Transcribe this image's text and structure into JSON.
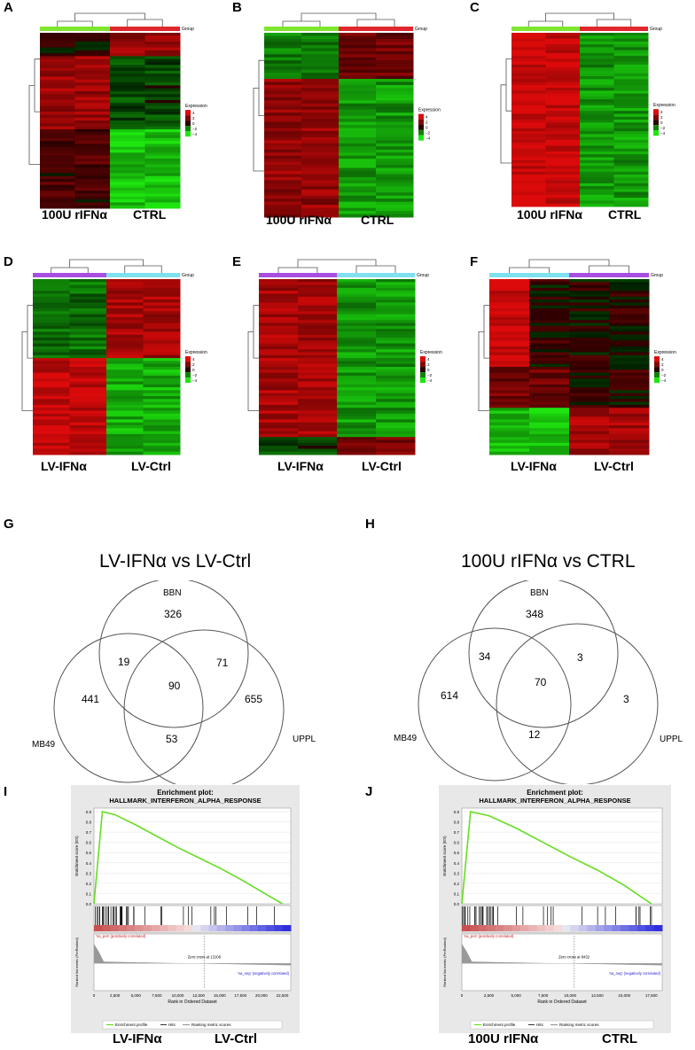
{
  "panels": {
    "A": {
      "letter": "A",
      "left": "100U  rIFNα",
      "right": "CTRL",
      "group": "Group"
    },
    "B": {
      "letter": "B",
      "left": "100U  rIFNα",
      "right": "CTRL",
      "group": "Group"
    },
    "C": {
      "letter": "C",
      "left": "100U  rIFNα",
      "right": "CTRL",
      "group": "Group"
    },
    "D": {
      "letter": "D",
      "left": "LV-IFNα",
      "right": "LV-Ctrl",
      "group": "Group"
    },
    "E": {
      "letter": "E",
      "left": "LV-IFNα",
      "right": "LV-Ctrl",
      "group": "Group"
    },
    "F": {
      "letter": "F",
      "left": "LV-IFNα",
      "right": "LV-Ctrl",
      "group": "Group"
    }
  },
  "legend": {
    "title": "Expression",
    "ticks": [
      "4",
      "2",
      "0",
      "−2",
      "−4"
    ]
  },
  "colors": {
    "top_green": "#7fe52e",
    "top_red": "#e0272e",
    "purple": "#a84ee0",
    "cyan": "#7fe0ee",
    "hm_red": "#c8201e",
    "hm_green": "#3fce1a"
  },
  "venn": {
    "G": {
      "letter": "G",
      "title": "LV-IFNα vs LV-Ctrl",
      "labels": {
        "bbn": "BBN",
        "mb49": "MB49",
        "uppl": "UPPL"
      },
      "counts": {
        "bbn_only": "326",
        "bbn_mb49": "19",
        "bbn_uppl": "71",
        "all": "90",
        "mb49_only": "441",
        "uppl_only": "655",
        "mb49_uppl": "53"
      }
    },
    "H": {
      "letter": "H",
      "title": "100U rIFNα vs CTRL",
      "labels": {
        "bbn": "BBN",
        "mb49": "MB49",
        "uppl": "UPPL"
      },
      "counts": {
        "bbn_only": "348",
        "bbn_mb49": "34",
        "bbn_uppl": "3",
        "all": "70",
        "mb49_only": "614",
        "uppl_only": "3",
        "mb49_uppl": "12"
      }
    }
  },
  "gsea": {
    "I": {
      "letter": "I",
      "title1": "Enrichment plot:",
      "title2": "HALLMARK_INTERFERON_ALPHA_RESPONSE",
      "ylab1": "Enrichment score (ES)",
      "ylab2": "Ranked list metric (PreRanked)",
      "xlab": "Rank in Ordered Dataset",
      "pos": "'na_pos' (positively correlated)",
      "neg": "'na_neg' (negatively correlated)",
      "zero": "Zero cross at 13108",
      "xticks": [
        "0",
        "2,500",
        "5,000",
        "7,500",
        "10,000",
        "12,500",
        "15,000",
        "17,500",
        "20,000",
        "22,500"
      ],
      "legend": [
        "Enrichment profile",
        "Hits",
        "Ranking metric scores"
      ],
      "cap_left": "LV-IFNα",
      "cap_right": "LV-Ctrl"
    },
    "J": {
      "letter": "J",
      "title1": "Enrichment plot:",
      "title2": "HALLMARK_INTERFERON_ALPHA_RESPONSE",
      "ylab1": "Enrichment score (ES)",
      "ylab2": "Ranked list metric (PreRanked)",
      "xlab": "Rank in Ordered Dataset",
      "pos": "'na_pos' (positively correlated)",
      "neg": "'na_neg' (negatively correlated)",
      "zero": "Zero cross at 8432",
      "xticks": [
        "0",
        "2,500",
        "5,000",
        "7,500",
        "10,000",
        "12,500",
        "15,000",
        "17,500"
      ],
      "legend": [
        "Enrichment profile",
        "Hits",
        "Ranking metric scores"
      ],
      "cap_left": "100U  rIFNα",
      "cap_right": "CTRL"
    }
  },
  "chart_data": [
    {
      "type": "heatmap",
      "panel": "A",
      "columns": 4,
      "rows": 60,
      "ylim": [
        -4,
        4
      ]
    },
    {
      "type": "heatmap",
      "panel": "B",
      "columns": 4,
      "rows": 60,
      "ylim": [
        -4,
        4
      ]
    },
    {
      "type": "heatmap",
      "panel": "C",
      "columns": 4,
      "rows": 60,
      "ylim": [
        -4,
        4
      ]
    },
    {
      "type": "heatmap",
      "panel": "D",
      "columns": 4,
      "rows": 60,
      "ylim": [
        -4,
        4
      ]
    },
    {
      "type": "heatmap",
      "panel": "E",
      "columns": 4,
      "rows": 60,
      "ylim": [
        -4,
        4
      ]
    },
    {
      "type": "heatmap",
      "panel": "F",
      "columns": 4,
      "rows": 60,
      "ylim": [
        -4,
        4
      ]
    },
    {
      "type": "line",
      "panel": "I",
      "x": [
        0,
        1000,
        2500,
        5000,
        7500,
        10000,
        12500,
        15000,
        17500,
        20000,
        22500
      ],
      "y": [
        0.0,
        0.9,
        0.87,
        0.77,
        0.66,
        0.55,
        0.45,
        0.35,
        0.24,
        0.12,
        0.0
      ],
      "xlim": [
        0,
        23500
      ],
      "ylim": [
        0,
        0.9
      ]
    },
    {
      "type": "line",
      "panel": "J",
      "x": [
        0,
        800,
        2500,
        5000,
        7500,
        10000,
        12500,
        15000,
        17500
      ],
      "y": [
        0.0,
        0.9,
        0.86,
        0.74,
        0.6,
        0.46,
        0.33,
        0.18,
        0.0
      ],
      "xlim": [
        0,
        18500
      ],
      "ylim": [
        0,
        0.9
      ]
    }
  ]
}
